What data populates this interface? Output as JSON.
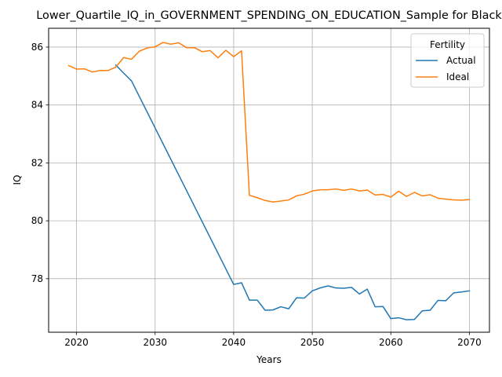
{
  "chart_data": {
    "type": "line",
    "title": "Lower_Quartile_IQ_in_GOVERNMENT_SPENDING_ON_EDUCATION_Sample for Black",
    "xlabel": "Years",
    "ylabel": "IQ",
    "xlim": [
      2016.45,
      2072.55
    ],
    "ylim": [
      76.15,
      86.65
    ],
    "xticks": [
      2020,
      2030,
      2040,
      2050,
      2060,
      2070
    ],
    "yticks": [
      78,
      80,
      82,
      84,
      86
    ],
    "grid": true,
    "legend": {
      "title": "Fertility",
      "placement": "top-right"
    },
    "series": [
      {
        "name": "Actual",
        "color": "#1f77b4",
        "x": [
          2025,
          2026,
          2027,
          2040,
          2041,
          2042,
          2043,
          2044,
          2045,
          2046,
          2047,
          2048,
          2049,
          2050,
          2051,
          2052,
          2053,
          2054,
          2055,
          2056,
          2057,
          2058,
          2059,
          2060,
          2061,
          2062,
          2063,
          2064,
          2065,
          2066,
          2067,
          2068,
          2069,
          2070
        ],
        "values": [
          85.38,
          85.1,
          84.83,
          77.8,
          77.86,
          77.26,
          77.26,
          76.91,
          76.92,
          77.03,
          76.96,
          77.34,
          77.33,
          77.58,
          77.68,
          77.75,
          77.68,
          77.67,
          77.7,
          77.47,
          77.64,
          77.03,
          77.04,
          76.62,
          76.65,
          76.58,
          76.59,
          76.89,
          76.91,
          77.25,
          77.24,
          77.51,
          77.54,
          77.58
        ]
      },
      {
        "name": "Ideal",
        "color": "#ff7f0e",
        "x": [
          2019,
          2020,
          2021,
          2022,
          2023,
          2024,
          2025,
          2026,
          2027,
          2028,
          2029,
          2030,
          2031,
          2032,
          2033,
          2034,
          2035,
          2036,
          2037,
          2038,
          2039,
          2040,
          2041,
          2042,
          2043,
          2044,
          2045,
          2046,
          2047,
          2048,
          2049,
          2050,
          2051,
          2052,
          2053,
          2054,
          2055,
          2056,
          2057,
          2058,
          2059,
          2060,
          2061,
          2062,
          2063,
          2064,
          2065,
          2066,
          2067,
          2068,
          2069,
          2070
        ],
        "values": [
          85.36,
          85.24,
          85.25,
          85.14,
          85.19,
          85.19,
          85.31,
          85.64,
          85.58,
          85.86,
          85.97,
          86.01,
          86.16,
          86.1,
          86.15,
          85.98,
          85.98,
          85.84,
          85.88,
          85.63,
          85.89,
          85.67,
          85.87,
          80.88,
          80.8,
          80.7,
          80.65,
          80.68,
          80.72,
          80.86,
          80.92,
          81.03,
          81.07,
          81.07,
          81.1,
          81.05,
          81.1,
          81.03,
          81.06,
          80.89,
          80.91,
          80.82,
          81.02,
          80.84,
          80.98,
          80.86,
          80.9,
          80.78,
          80.75,
          80.72,
          80.71,
          80.73
        ]
      }
    ]
  }
}
